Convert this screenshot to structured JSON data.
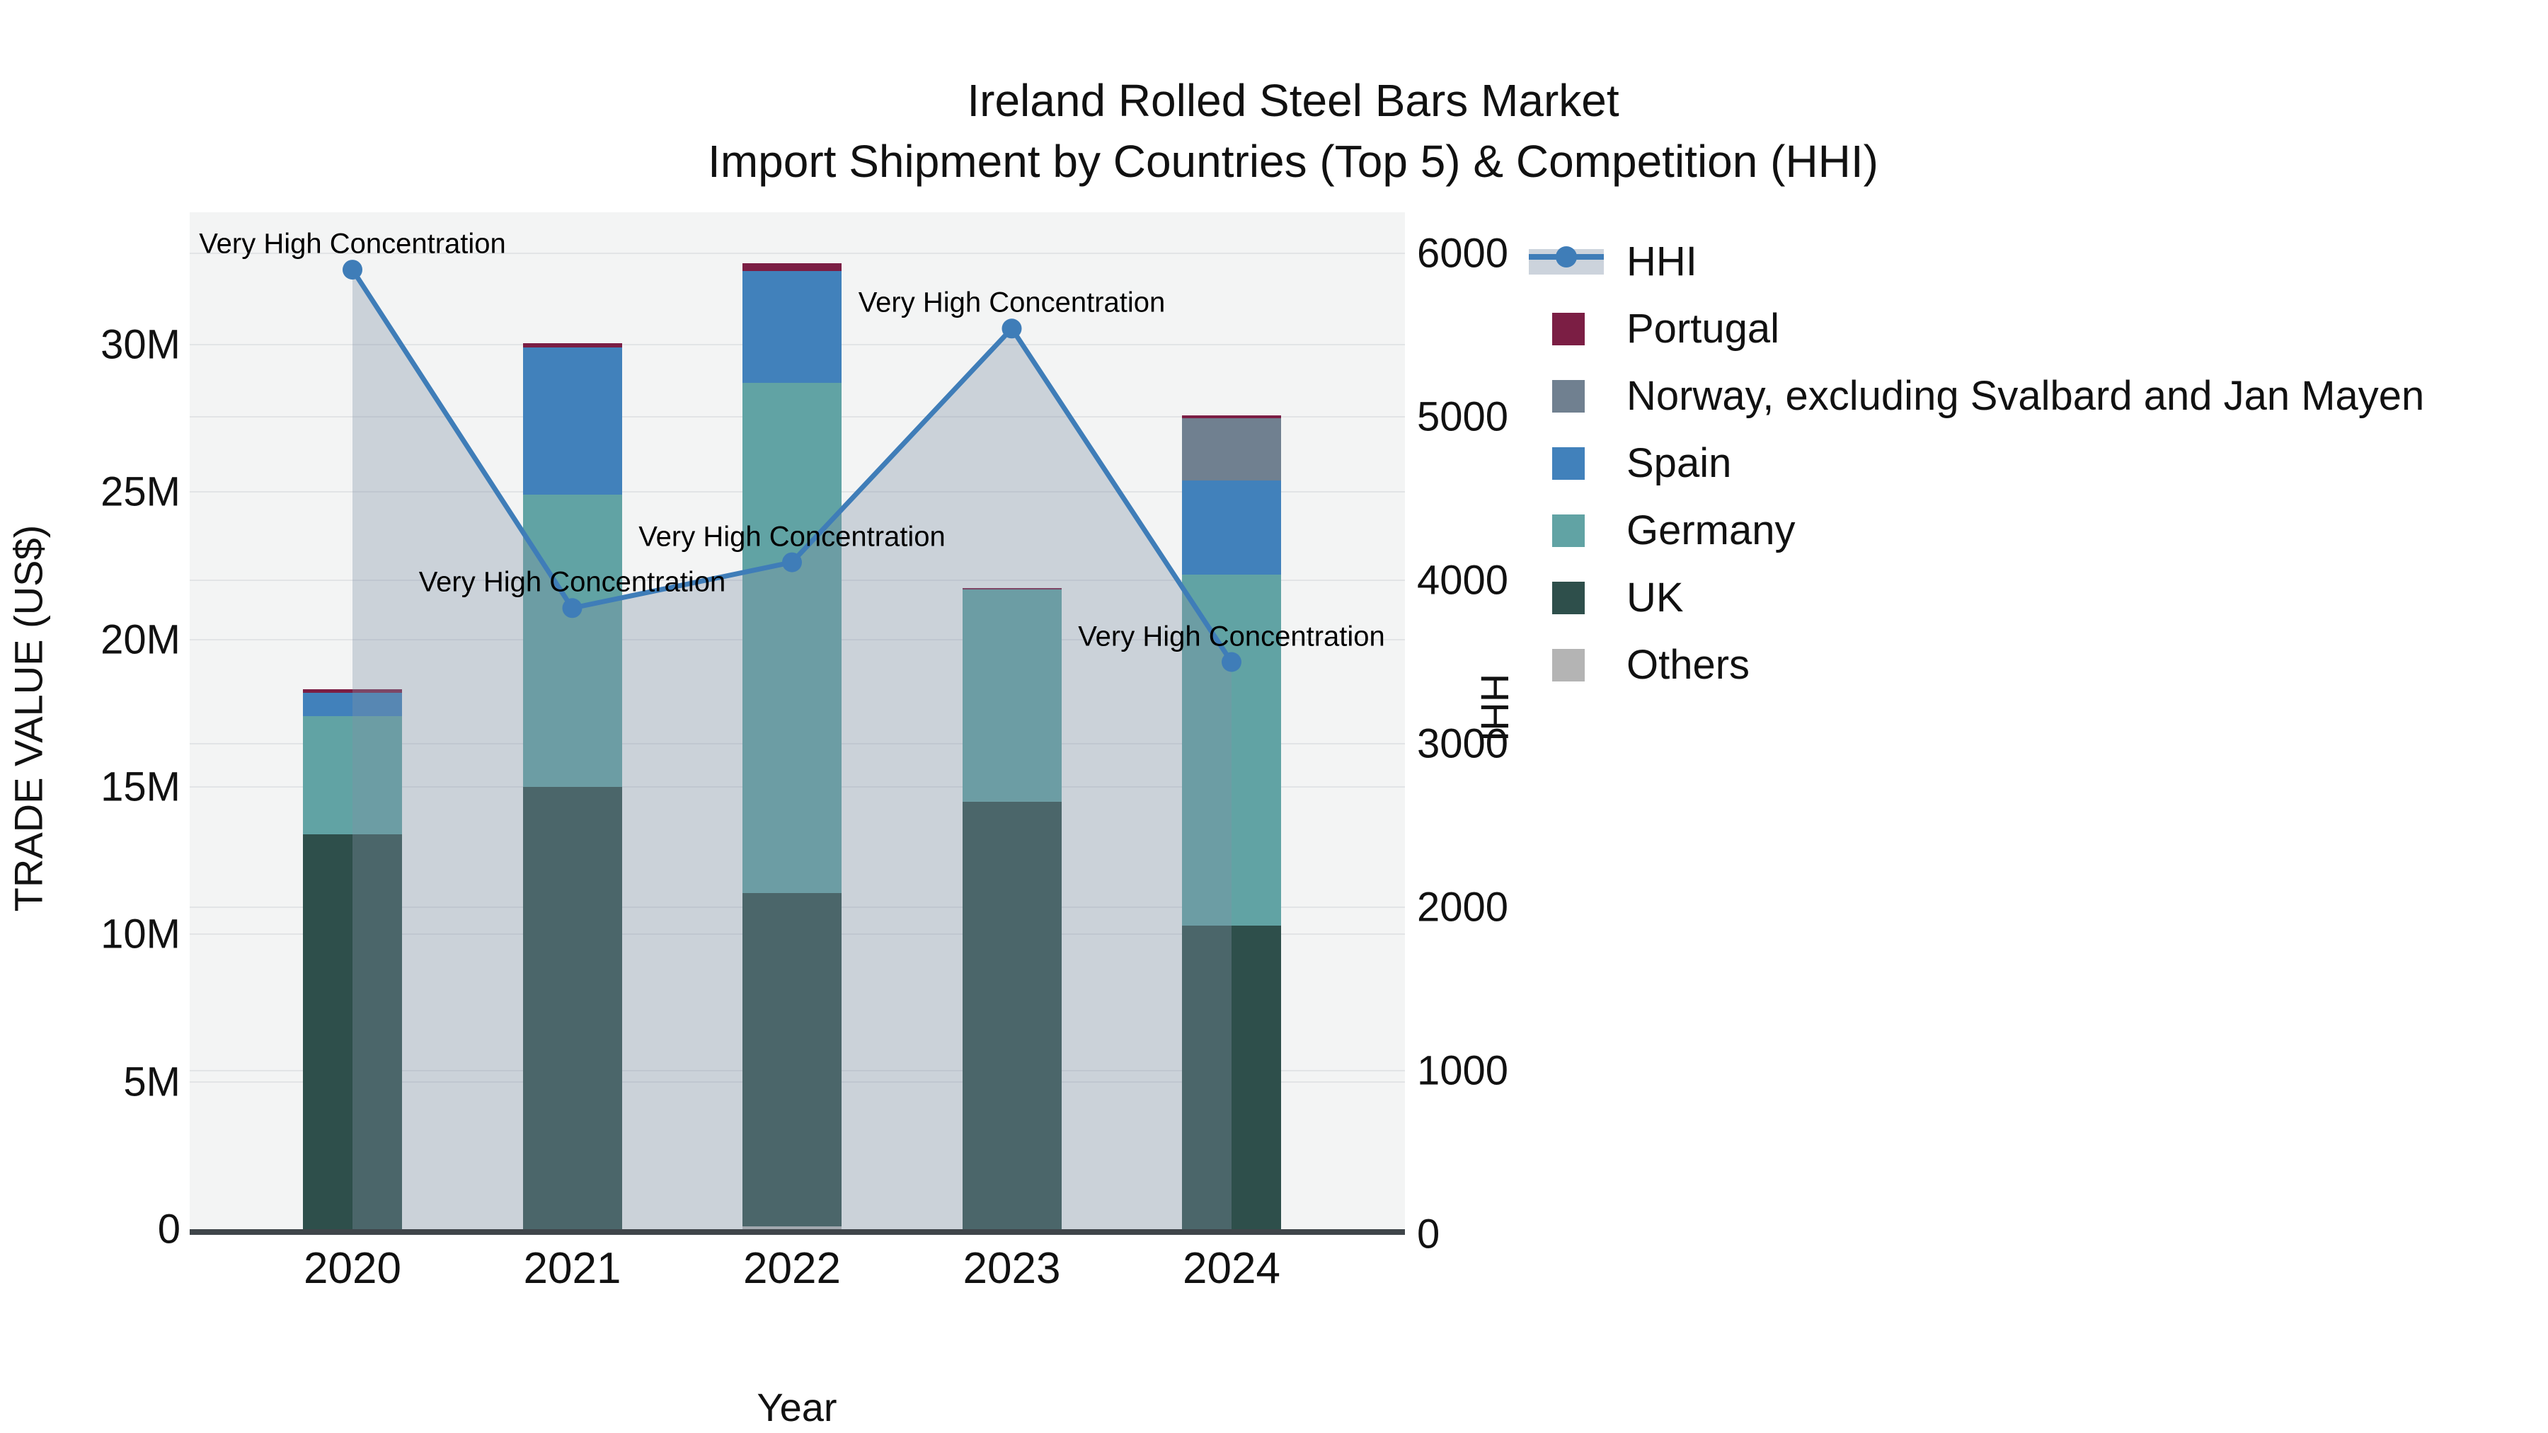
{
  "title": {
    "line1": "Ireland Rolled Steel Bars Market",
    "line2": "Import Shipment by Countries (Top 5) & Competition (HHI)"
  },
  "axes": {
    "left": {
      "title": "TRADE VALUE (US$)",
      "ticks": [
        "0",
        "5M",
        "10M",
        "15M",
        "20M",
        "25M",
        "30M"
      ],
      "tick_values": [
        0,
        5,
        10,
        15,
        20,
        25,
        30
      ]
    },
    "right": {
      "title": "HHI",
      "ticks": [
        "0",
        "1000",
        "2000",
        "3000",
        "4000",
        "5000",
        "6000"
      ],
      "tick_values": [
        0,
        1000,
        2000,
        3000,
        4000,
        5000,
        6000
      ]
    },
    "x": {
      "title": "Year",
      "categories": [
        "2020",
        "2021",
        "2022",
        "2023",
        "2024"
      ]
    }
  },
  "legend": [
    {
      "label": "HHI",
      "type": "line",
      "color": "#3f7db8"
    },
    {
      "label": "Portugal",
      "type": "square",
      "color": "#7b1e44"
    },
    {
      "label": "Norway, excluding Svalbard and Jan Mayen",
      "type": "square",
      "color": "#708090"
    },
    {
      "label": "Spain",
      "type": "square",
      "color": "#4181bb"
    },
    {
      "label": "Germany",
      "type": "square",
      "color": "#61a3a4"
    },
    {
      "label": "UK",
      "type": "square",
      "color": "#2e4f4b"
    },
    {
      "label": "Others",
      "type": "square",
      "color": "#b4b4b4"
    }
  ],
  "annotations": [
    {
      "text": "Very High Concentration",
      "point_index": 0
    },
    {
      "text": "Very High Concentration",
      "point_index": 1
    },
    {
      "text": "Very High Concentration",
      "point_index": 2
    },
    {
      "text": "Very High Concentration",
      "point_index": 3
    },
    {
      "text": "Very High Concentration",
      "point_index": 4
    }
  ],
  "chart_data": {
    "type": "combo: stacked-bar (left axis) + line-with-area (right axis)",
    "title": "Ireland Rolled Steel Bars Market — Import Shipment by Countries (Top 5) & Competition (HHI)",
    "categories": [
      "2020",
      "2021",
      "2022",
      "2023",
      "2024"
    ],
    "bar_value_unit": "million US$",
    "stack_order_bottom_to_top": [
      "Others",
      "UK",
      "Germany",
      "Spain",
      "Norway, excluding Svalbard and Jan Mayen",
      "Portugal"
    ],
    "series": [
      {
        "name": "Others",
        "color": "#b4b4b4",
        "values": [
          0,
          0,
          0.1,
          0,
          0
        ]
      },
      {
        "name": "UK",
        "color": "#2e4f4b",
        "values": [
          13.4,
          15.0,
          11.3,
          14.5,
          10.3
        ]
      },
      {
        "name": "Germany",
        "color": "#61a3a4",
        "values": [
          4.0,
          9.9,
          17.3,
          7.2,
          11.9
        ]
      },
      {
        "name": "Spain",
        "color": "#4181bb",
        "values": [
          0.8,
          5.0,
          3.8,
          0,
          3.2
        ]
      },
      {
        "name": "Norway, excluding Svalbard and Jan Mayen",
        "color": "#708090",
        "values": [
          0,
          0,
          0,
          0,
          2.1
        ]
      },
      {
        "name": "Portugal",
        "color": "#7b1e44",
        "values": [
          0.1,
          0.15,
          0.25,
          0.05,
          0.1
        ]
      }
    ],
    "bar_totals": [
      18.3,
      30.05,
      32.75,
      21.75,
      27.6
    ],
    "line_series": {
      "name": "HHI",
      "axis": "right",
      "values": [
        5900,
        3830,
        4110,
        5540,
        3500
      ],
      "line_color": "#3f7db8",
      "area_fill": "rgba(130,145,165,0.35)",
      "markers": true
    },
    "xlabel": "Year",
    "ylabel_left": "TRADE VALUE (US$)",
    "ylabel_right": "HHI",
    "ylim_left": [
      0,
      34.5
    ],
    "ylim_right": [
      0,
      6250
    ],
    "grid": true,
    "plot_background": "#f3f4f4",
    "legend_position": "right"
  }
}
